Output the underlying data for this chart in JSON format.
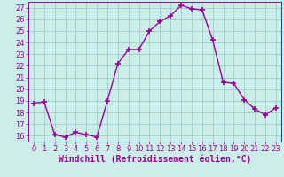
{
  "x": [
    0,
    1,
    2,
    3,
    4,
    5,
    6,
    7,
    8,
    9,
    10,
    11,
    12,
    13,
    14,
    15,
    16,
    17,
    18,
    19,
    20,
    21,
    22,
    23
  ],
  "y": [
    18.8,
    18.9,
    16.1,
    15.9,
    16.3,
    16.1,
    15.9,
    19.0,
    22.2,
    23.4,
    23.4,
    25.0,
    25.8,
    26.3,
    27.2,
    26.9,
    26.8,
    24.2,
    20.6,
    20.5,
    19.1,
    18.3,
    17.8,
    18.4
  ],
  "line_color": "#990099",
  "marker": "+",
  "marker_size": 4,
  "marker_linewidth": 1.2,
  "bg_color": "#cceee8",
  "grid_color": "#99cccc",
  "xlabel": "Windchill (Refroidissement éolien,°C)",
  "xlabel_fontsize": 7.0,
  "ylim": [
    15.5,
    27.5
  ],
  "xlim": [
    -0.5,
    23.5
  ],
  "yticks": [
    16,
    17,
    18,
    19,
    20,
    21,
    22,
    23,
    24,
    25,
    26,
    27
  ],
  "xticks": [
    0,
    1,
    2,
    3,
    4,
    5,
    6,
    7,
    8,
    9,
    10,
    11,
    12,
    13,
    14,
    15,
    16,
    17,
    18,
    19,
    20,
    21,
    22,
    23
  ],
  "tick_fontsize": 6.0,
  "tick_color": "#990099",
  "spine_color": "#990099",
  "line_width": 1.0
}
